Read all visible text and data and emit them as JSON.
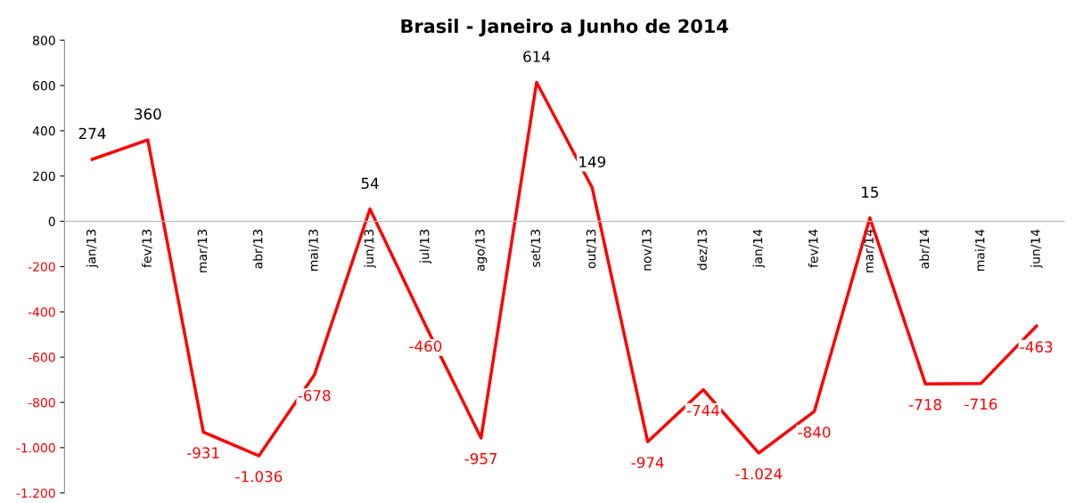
{
  "chart_data": {
    "type": "line",
    "title": "Brasil - Janeiro a Junho de 2014",
    "categories": [
      "jan/13",
      "fev/13",
      "mar/13",
      "abr/13",
      "mai/13",
      "jun/13",
      "jul/13",
      "ago/13",
      "set/13",
      "out/13",
      "nov/13",
      "dez/13",
      "jan/14",
      "fev/14",
      "mar/14",
      "abr/14",
      "mai/14",
      "jun/14"
    ],
    "series": [
      {
        "color": "#ff0000",
        "values": [
          274,
          360,
          -931,
          -1036,
          -678,
          54,
          -460,
          -957,
          614,
          149,
          -974,
          -744,
          -1024,
          -840,
          15,
          -718,
          -716,
          -463
        ],
        "value_labels": [
          "274",
          "360",
          "-931",
          "-1.036",
          "-678",
          "54",
          "-460",
          "-957",
          "614",
          "149",
          "-974",
          "-744",
          "-1.024",
          "-840",
          "15",
          "-718",
          "-716",
          "-463"
        ]
      }
    ],
    "ylim": [
      -1200,
      800
    ],
    "yticks": [
      {
        "value": -1200,
        "label": "-1.200"
      },
      {
        "value": -1000,
        "label": "-1.000"
      },
      -800,
      -600,
      -400,
      -200,
      0,
      200,
      400,
      600,
      800
    ],
    "grid": false,
    "marker": "none",
    "line_style": "solid"
  }
}
